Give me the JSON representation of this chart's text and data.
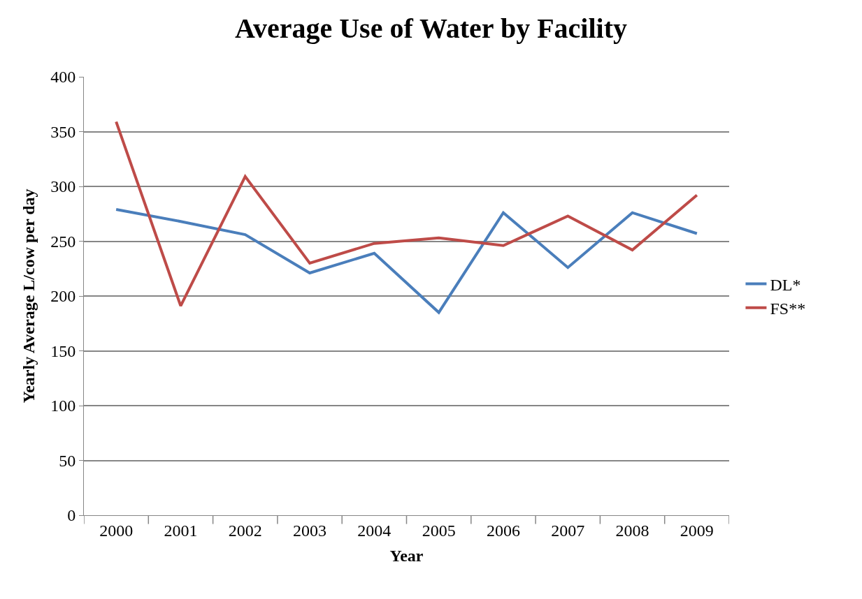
{
  "chart_data": {
    "type": "line",
    "title": "Average Use of Water by Facility",
    "xlabel": "Year",
    "ylabel": "Yearly Average L/cow per day",
    "categories": [
      "2000",
      "2001",
      "2002",
      "2003",
      "2004",
      "2005",
      "2006",
      "2007",
      "2008",
      "2009"
    ],
    "series": [
      {
        "name": "DL*",
        "color": "#4a7ebb",
        "values": [
          279,
          268,
          256,
          221,
          239,
          185,
          276,
          226,
          276,
          257
        ]
      },
      {
        "name": "FS**",
        "color": "#be4b48",
        "values": [
          359,
          191,
          309,
          230,
          248,
          253,
          246,
          273,
          242,
          292
        ]
      }
    ],
    "ylim": [
      0,
      400
    ],
    "yticks": [
      0,
      50,
      100,
      150,
      200,
      250,
      300,
      350,
      400
    ],
    "grid": "y",
    "legend": "right",
    "marker": "none",
    "line_style": "solid"
  }
}
